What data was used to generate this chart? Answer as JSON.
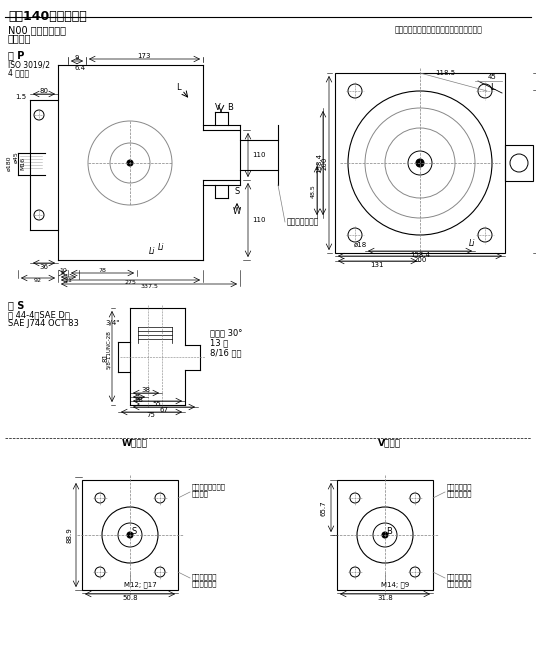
{
  "title": "规格140的元件尺寸",
  "subtitle_left1": "N00 型（无通轴）",
  "subtitle_left2": "无控制阀",
  "subtitle_right": "在确定最终设计之前，请务必索取安装图。",
  "section_p": "轴 P",
  "section_s": "轴 S",
  "label_iso": "ISO 3019/2",
  "label_4hole": "4 孔法兰",
  "label_shaft_s1": "轴 44-4（SAE D）",
  "label_shaft_s2": "SAE J744 OCT 83",
  "label_pressure": "压力角 30°",
  "label_teeth": "13 齿",
  "label_pitch": "8/16 节距",
  "label_w_view": "W向视图",
  "label_v_view": "V向视图",
  "label_mech_limit": "机械排量限制器",
  "label_m12": "M12; 深17",
  "label_m14": "M14; 深9",
  "bg_color": "#ffffff",
  "line_color": "#000000",
  "text_color": "#000000"
}
